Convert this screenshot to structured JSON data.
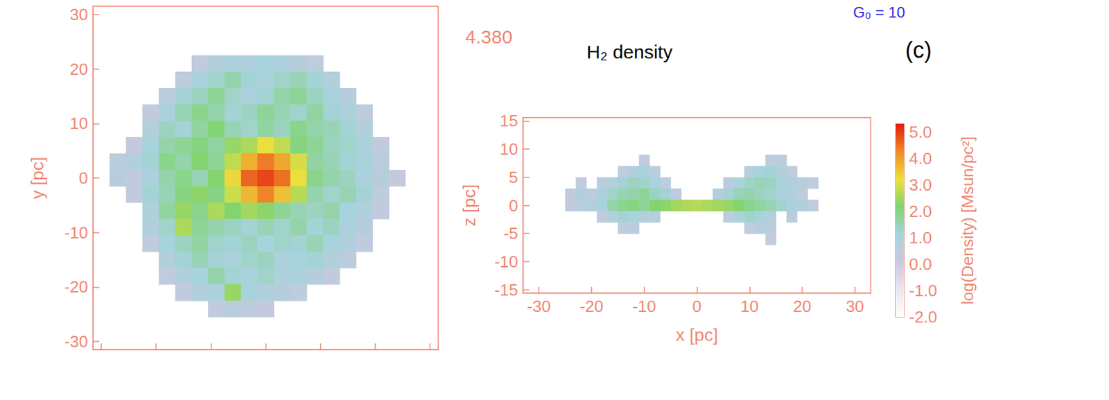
{
  "title": "H₂ density",
  "time_label": "4.380",
  "panel_label": "(c)",
  "subtitle": "G₀ = 10",
  "colorbar": {
    "label": "log(Density) [Msun/pc²]",
    "range": [
      -2,
      5.3
    ],
    "ticks": [
      {
        "value": 5,
        "label": "5.0"
      },
      {
        "value": 4,
        "label": "4.0"
      },
      {
        "value": 3,
        "label": "3.0"
      },
      {
        "value": 2,
        "label": "2.0"
      },
      {
        "value": 1,
        "label": "1.0"
      },
      {
        "value": 0,
        "label": "0.0"
      },
      {
        "value": -1,
        "label": "-1.0"
      },
      {
        "value": -2,
        "label": "-2.0"
      }
    ],
    "colors": [
      "#ffffff",
      "#eae6ee",
      "#cdc7dd",
      "#a6d3dc",
      "#80d470",
      "#ecdf3c",
      "#f08a2a",
      "#e31a0c"
    ]
  },
  "chart_data": [
    {
      "type": "heatmap",
      "y_label": "y [pc]",
      "xlim": [
        -31.5,
        31.5
      ],
      "ylim": [
        -31.5,
        31.5
      ],
      "xticks": [
        -30,
        -20,
        -10,
        0,
        10,
        20,
        30
      ],
      "yticks": [
        -30,
        -20,
        -10,
        0,
        10,
        20,
        30
      ],
      "tick_labels": "y",
      "x": [
        -27,
        -24,
        -21,
        -18,
        -15,
        -12,
        -9,
        -6,
        -3,
        0,
        3,
        6,
        9,
        12,
        15,
        18,
        21,
        24
      ],
      "y": [
        21,
        18,
        15,
        12,
        9,
        6,
        3,
        0,
        -3,
        -6,
        -9,
        -12,
        -15,
        -18,
        -21,
        -24
      ],
      "cells": [
        [
          null,
          null,
          null,
          null,
          null,
          0.4,
          0.8,
          1.0,
          0.9,
          1.1,
          1.0,
          0.7,
          0.5,
          null,
          null,
          null,
          null,
          null
        ],
        [
          null,
          null,
          null,
          null,
          0.5,
          1.0,
          1.3,
          1.6,
          1.2,
          1.0,
          1.3,
          1.5,
          1.2,
          0.8,
          null,
          null,
          null,
          null
        ],
        [
          null,
          null,
          null,
          0.6,
          1.2,
          1.4,
          1.8,
          1.3,
          1.0,
          1.2,
          1.6,
          1.8,
          1.4,
          1.1,
          0.7,
          null,
          null,
          null
        ],
        [
          null,
          null,
          0.4,
          1.0,
          1.5,
          1.9,
          1.6,
          1.2,
          1.4,
          1.8,
          1.5,
          1.3,
          1.7,
          1.2,
          1.0,
          0.5,
          null,
          null
        ],
        [
          null,
          null,
          0.8,
          1.4,
          1.2,
          1.7,
          2.1,
          1.5,
          1.3,
          1.7,
          1.4,
          1.9,
          1.6,
          1.5,
          1.2,
          0.8,
          null,
          null
        ],
        [
          null,
          0.3,
          1.1,
          1.6,
          1.8,
          2.0,
          1.7,
          2.4,
          2.6,
          3.2,
          2.8,
          2.0,
          1.8,
          1.4,
          1.3,
          1.0,
          0.4,
          null
        ],
        [
          0.6,
          0.9,
          1.2,
          1.9,
          1.6,
          2.2,
          1.8,
          2.8,
          3.8,
          4.4,
          3.9,
          3.0,
          1.7,
          1.5,
          1.2,
          1.1,
          0.6,
          null
        ],
        [
          0.7,
          0.5,
          1.0,
          1.6,
          1.9,
          1.5,
          2.2,
          3.3,
          4.6,
          4.9,
          4.5,
          3.2,
          1.9,
          1.6,
          1.4,
          1.0,
          0.7,
          0.3
        ],
        [
          null,
          0.4,
          1.2,
          1.5,
          2.0,
          2.3,
          2.0,
          2.9,
          3.7,
          4.3,
          3.6,
          2.7,
          1.6,
          1.3,
          1.5,
          1.2,
          0.5,
          null
        ],
        [
          null,
          null,
          0.9,
          1.7,
          2.4,
          1.9,
          2.6,
          2.2,
          2.5,
          2.3,
          1.8,
          1.5,
          1.4,
          1.6,
          1.1,
          0.9,
          0.4,
          null
        ],
        [
          null,
          null,
          0.8,
          1.3,
          2.6,
          1.8,
          1.6,
          1.4,
          1.2,
          1.5,
          1.3,
          1.6,
          1.2,
          1.4,
          1.0,
          0.7,
          null,
          null
        ],
        [
          null,
          null,
          0.5,
          1.1,
          1.4,
          1.7,
          1.3,
          1.2,
          1.4,
          1.1,
          1.3,
          1.2,
          1.5,
          1.1,
          0.9,
          0.5,
          null,
          null
        ],
        [
          null,
          null,
          null,
          0.8,
          1.2,
          1.5,
          1.2,
          1.0,
          1.3,
          1.4,
          1.0,
          1.1,
          1.2,
          0.8,
          0.6,
          null,
          null,
          null
        ],
        [
          null,
          null,
          null,
          0.5,
          0.9,
          1.1,
          1.6,
          1.2,
          1.0,
          1.3,
          0.9,
          1.0,
          0.7,
          0.4,
          null,
          null,
          null,
          null
        ],
        [
          null,
          null,
          null,
          null,
          0.4,
          0.8,
          1.0,
          2.4,
          1.1,
          0.9,
          0.7,
          0.5,
          null,
          null,
          null,
          null,
          null,
          null
        ],
        [
          null,
          null,
          null,
          null,
          null,
          null,
          0.4,
          0.6,
          0.5,
          0.3,
          null,
          null,
          null,
          null,
          null,
          null,
          null,
          null
        ]
      ]
    },
    {
      "type": "heatmap",
      "x_label": "x [pc]",
      "y_label": "z [pc]",
      "xlim": [
        -33,
        33
      ],
      "ylim": [
        -15.6,
        15.6
      ],
      "xticks": [
        -30,
        -20,
        -10,
        0,
        10,
        20,
        30
      ],
      "yticks": [
        -15,
        -10,
        -5,
        0,
        5,
        10,
        15
      ],
      "x": [
        -24,
        -22,
        -20,
        -18,
        -16,
        -14,
        -12,
        -10,
        -8,
        -6,
        -4,
        -2,
        0,
        2,
        4,
        6,
        8,
        10,
        12,
        14,
        16,
        18,
        20,
        22,
        24
      ],
      "y": [
        8,
        6,
        4,
        2,
        0,
        -2,
        -4,
        -6
      ],
      "cells": [
        [
          null,
          null,
          null,
          null,
          null,
          null,
          null,
          0.4,
          null,
          null,
          null,
          null,
          null,
          null,
          null,
          null,
          null,
          null,
          null,
          0.5,
          0.6,
          null,
          null,
          null,
          null
        ],
        [
          null,
          null,
          null,
          null,
          null,
          0.5,
          0.9,
          1.0,
          0.6,
          null,
          null,
          null,
          null,
          null,
          null,
          null,
          null,
          0.7,
          1.1,
          1.2,
          0.8,
          0.5,
          null,
          null,
          null
        ],
        [
          null,
          0.4,
          null,
          0.6,
          0.9,
          1.2,
          1.4,
          1.3,
          1.1,
          0.5,
          null,
          null,
          null,
          null,
          null,
          0.6,
          1.0,
          1.3,
          1.5,
          1.4,
          1.1,
          0.8,
          0.6,
          0.5,
          null
        ],
        [
          0.5,
          0.8,
          0.6,
          1.0,
          1.3,
          1.5,
          1.6,
          1.8,
          1.4,
          1.2,
          0.6,
          null,
          null,
          null,
          0.7,
          1.2,
          1.5,
          1.6,
          1.4,
          1.3,
          1.0,
          0.9,
          0.5,
          null,
          null
        ],
        [
          0.4,
          0.6,
          0.8,
          1.1,
          1.6,
          1.9,
          2.0,
          1.8,
          2.2,
          2.3,
          2.5,
          2.6,
          2.7,
          2.6,
          2.5,
          2.4,
          2.2,
          1.9,
          1.7,
          1.5,
          1.3,
          1.0,
          0.8,
          0.5,
          null
        ],
        [
          null,
          null,
          null,
          0.5,
          0.9,
          1.2,
          1.1,
          0.9,
          0.7,
          null,
          null,
          null,
          null,
          null,
          null,
          0.6,
          1.0,
          1.3,
          1.1,
          0.8,
          null,
          0.6,
          null,
          null,
          null
        ],
        [
          null,
          null,
          null,
          null,
          null,
          0.5,
          0.6,
          null,
          null,
          null,
          null,
          null,
          null,
          null,
          null,
          null,
          null,
          0.5,
          0.7,
          0.6,
          null,
          null,
          null,
          null,
          null
        ],
        [
          null,
          null,
          null,
          null,
          null,
          null,
          null,
          null,
          null,
          null,
          null,
          null,
          null,
          null,
          null,
          null,
          null,
          null,
          null,
          0.4,
          null,
          null,
          null,
          null,
          null
        ]
      ]
    }
  ]
}
